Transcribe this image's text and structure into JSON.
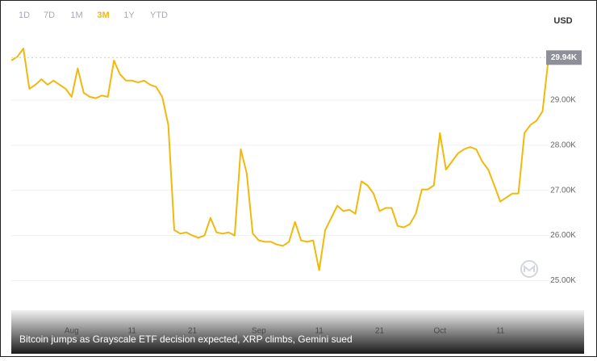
{
  "chart_data": {
    "type": "line",
    "range_buttons": [
      "1D",
      "7D",
      "1M",
      "3M",
      "1Y",
      "YTD"
    ],
    "active_range": 3,
    "y_axis_label": "USD",
    "current_price_label": "29.94K",
    "caption": "Bitcoin jumps as Grayscale ETF decision expected, XRP climbs, Gemini sued",
    "categories": [
      null,
      null,
      null,
      null,
      null,
      null,
      null,
      null,
      null,
      null,
      "Aug",
      null,
      null,
      null,
      null,
      null,
      null,
      null,
      null,
      null,
      "11",
      null,
      null,
      null,
      null,
      null,
      null,
      null,
      null,
      null,
      "21",
      null,
      null,
      null,
      null,
      null,
      null,
      null,
      null,
      null,
      null,
      "Sep",
      null,
      null,
      null,
      null,
      null,
      null,
      null,
      null,
      null,
      "11",
      null,
      null,
      null,
      null,
      null,
      null,
      null,
      null,
      null,
      "21",
      null,
      null,
      null,
      null,
      null,
      null,
      null,
      null,
      null,
      "Oct",
      null,
      null,
      null,
      null,
      null,
      null,
      null,
      null,
      null,
      "11",
      null,
      null,
      null,
      null,
      null,
      null,
      null,
      null
    ],
    "series": [
      {
        "color": "#f2b80c",
        "values": [
          29875,
          29960,
          30140,
          29250,
          29340,
          29460,
          29340,
          29430,
          29340,
          29250,
          29070,
          29700,
          29160,
          29070,
          29040,
          29100,
          29070,
          29875,
          29570,
          29430,
          29430,
          29390,
          29430,
          29340,
          29290,
          29070,
          28450,
          26120,
          26040,
          26070,
          26000,
          25950,
          26000,
          26390,
          26070,
          26040,
          26070,
          26000,
          27910,
          27380,
          26040,
          25890,
          25860,
          25860,
          25800,
          25770,
          25860,
          26300,
          25890,
          25860,
          25890,
          25230,
          26120,
          26390,
          26660,
          26540,
          26570,
          26480,
          27200,
          27110,
          26930,
          26540,
          26610,
          26610,
          26210,
          26180,
          26250,
          26480,
          27020,
          27020,
          27110,
          28270,
          27460,
          27640,
          27820,
          27910,
          27960,
          27910,
          27640,
          27460,
          27110,
          26750,
          26840,
          26930,
          26930,
          28270,
          28450,
          28540,
          28750,
          29940
        ]
      }
    ],
    "ylim": [
      24150,
      30500
    ],
    "yticks": [
      {
        "value": 25000,
        "label": "25.00K"
      },
      {
        "value": 26000,
        "label": "26.00K"
      },
      {
        "value": 27000,
        "label": "27.00K"
      },
      {
        "value": 28000,
        "label": "28.00K"
      },
      {
        "value": 29000,
        "label": "29.00K"
      }
    ],
    "grid": true
  }
}
